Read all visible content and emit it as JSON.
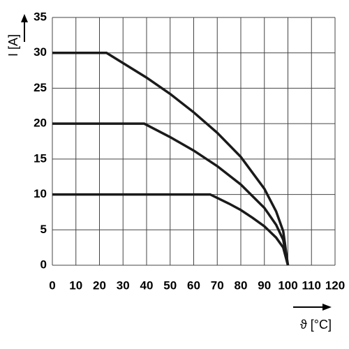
{
  "chart_data": {
    "type": "line",
    "x_label": "ϑ [°C]",
    "y_label": "I [A]",
    "xlim": [
      0,
      120
    ],
    "xticks": [
      0,
      10,
      20,
      30,
      40,
      50,
      60,
      70,
      80,
      90,
      100,
      110,
      120
    ],
    "ylim": [
      0,
      35
    ],
    "yticks": [
      0,
      5,
      10,
      15,
      20,
      25,
      30,
      35
    ],
    "grid": true,
    "series": [
      {
        "color": "#1a1a1a",
        "x": [
          0,
          23,
          40,
          50,
          60,
          70,
          80,
          90,
          95,
          98,
          100
        ],
        "values": [
          30,
          30,
          26.5,
          24.2,
          21.6,
          18.7,
          15.3,
          10.8,
          7.6,
          4.8,
          0
        ]
      },
      {
        "color": "#1a1a1a",
        "x": [
          0,
          39,
          50,
          60,
          70,
          80,
          90,
          95,
          98,
          100
        ],
        "values": [
          20,
          20,
          18.1,
          16.2,
          14,
          11.4,
          8.1,
          5.7,
          3.6,
          0
        ]
      },
      {
        "color": "#1a1a1a",
        "x": [
          0,
          67,
          75,
          80,
          85,
          90,
          95,
          98,
          100
        ],
        "values": [
          10,
          10,
          8.7,
          7.8,
          6.7,
          5.5,
          3.9,
          2.5,
          0
        ]
      }
    ]
  }
}
